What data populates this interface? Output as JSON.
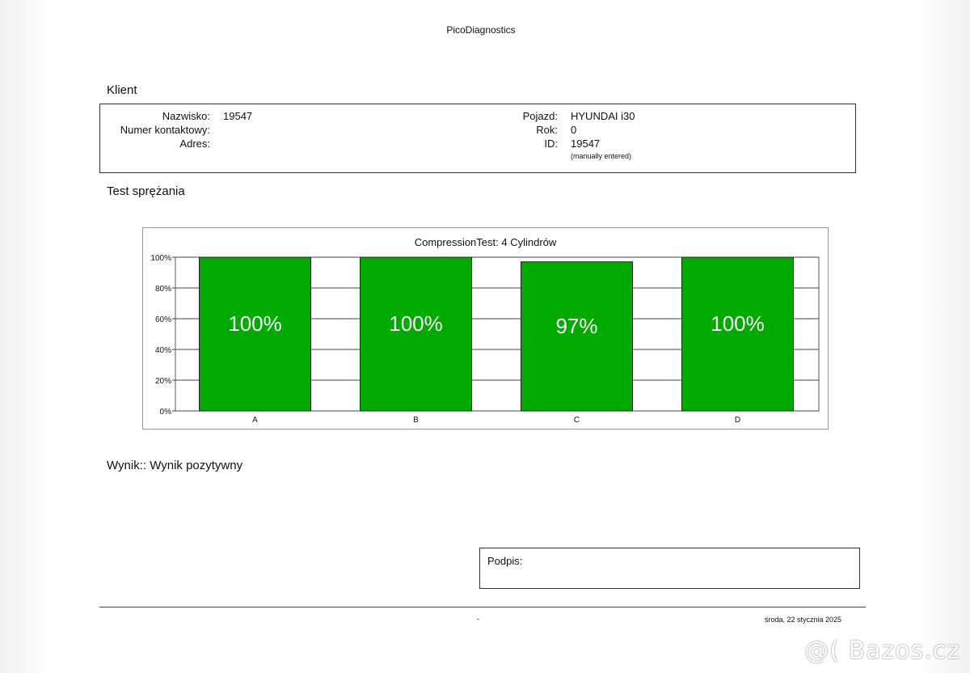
{
  "app_title": "PicoDiagnostics",
  "client": {
    "heading": "Klient",
    "left_labels": [
      "Nazwisko:",
      "Numer kontaktowy:",
      "Adres:"
    ],
    "left_values": [
      "19547",
      "",
      ""
    ],
    "right_labels": [
      "Pojazd:",
      "Rok:",
      "ID:"
    ],
    "right_values": [
      "HYUNDAI i30",
      "0",
      "19547"
    ],
    "id_note": "(manually entered)"
  },
  "test": {
    "heading": "Test sprężania"
  },
  "chart_data": {
    "type": "bar",
    "title": "CompressionTest: 4 Cylindrów",
    "categories": [
      "A",
      "B",
      "C",
      "D"
    ],
    "values": [
      100,
      100,
      97,
      100
    ],
    "data_labels": [
      "100%",
      "100%",
      "97%",
      "100%"
    ],
    "ylim": [
      0,
      100
    ],
    "yticks": [
      "0%",
      "20%",
      "40%",
      "60%",
      "80%",
      "100%"
    ],
    "ytick_values": [
      0,
      20,
      40,
      60,
      80,
      100
    ],
    "grid": true,
    "bar_color": "#00aa00"
  },
  "result": {
    "text": "Wynik:: Wynik pozytywny"
  },
  "signature": {
    "label": "Podpis:"
  },
  "footer": {
    "center": "-",
    "date": "środa, 22 stycznia 2025"
  },
  "watermark": "@( Bazos.cz"
}
